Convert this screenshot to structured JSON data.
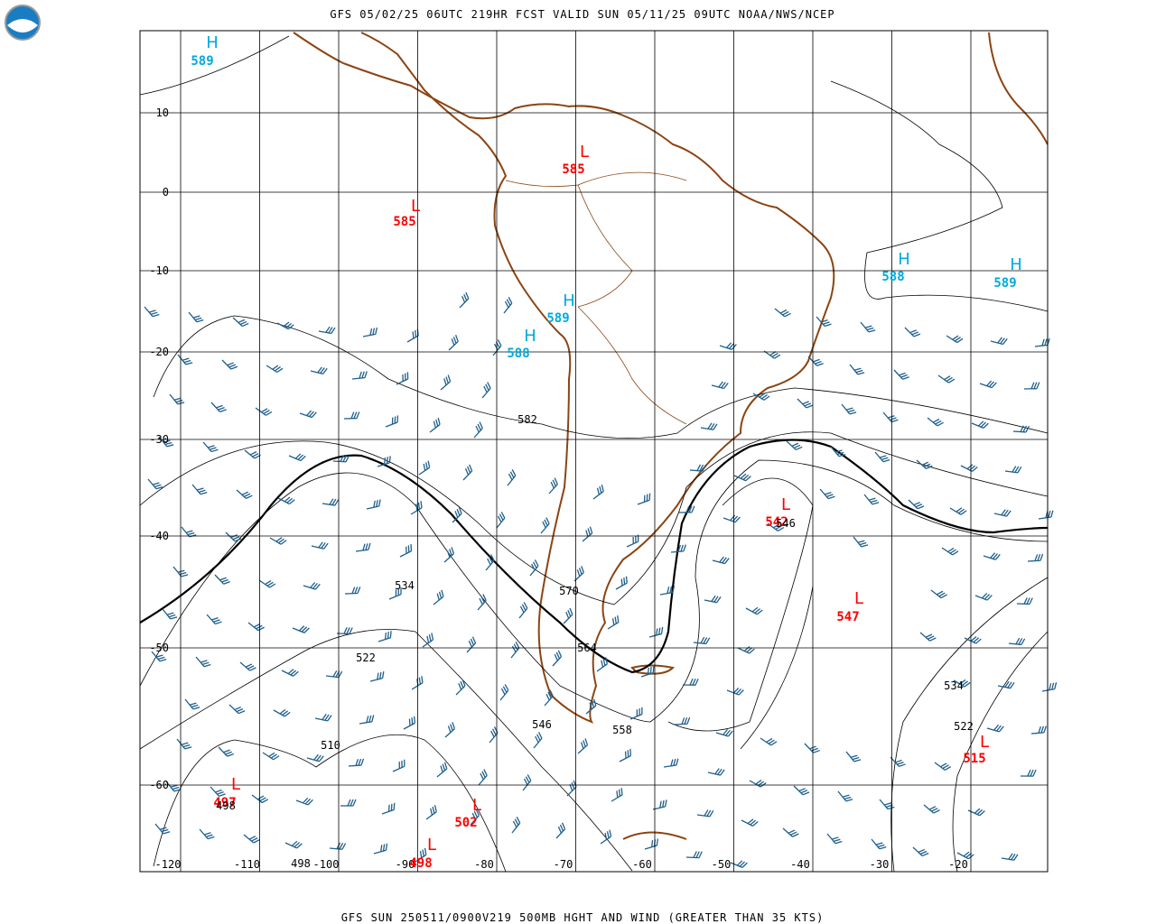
{
  "header": {
    "title": "GFS 05/02/25 06UTC 219HR FCST VALID SUN 05/11/25 09UTC NOAA/NWS/NCEP"
  },
  "footer": {
    "caption": "GFS SUN 250511/0900V219 500MB HGHT AND WIND (GREATER THAN 35 KTS)"
  },
  "map": {
    "latitudes": [
      "10",
      "0",
      "-10",
      "-20",
      "-30",
      "-40",
      "-50",
      "-60"
    ],
    "longitudes": [
      "-120",
      "-110",
      "-100",
      "-90",
      "-80",
      "-70",
      "-60",
      "-50",
      "-40",
      "-30",
      "-20"
    ],
    "highs": [
      {
        "symbol": "H",
        "value": "589"
      },
      {
        "symbol": "H",
        "value": "589"
      },
      {
        "symbol": "H",
        "value": "588"
      },
      {
        "symbol": "H",
        "value": "588"
      },
      {
        "symbol": "H",
        "value": "589"
      }
    ],
    "lows": [
      {
        "symbol": "L",
        "value": "585"
      },
      {
        "symbol": "L",
        "value": "585"
      },
      {
        "symbol": "L",
        "value": "542"
      },
      {
        "symbol": "L",
        "value": "547"
      },
      {
        "symbol": "L",
        "value": "515"
      },
      {
        "symbol": "L",
        "value": "497"
      },
      {
        "symbol": "L",
        "value": "502"
      },
      {
        "symbol": "L",
        "value": "498"
      }
    ],
    "contour_labels": [
      "582",
      "546",
      "534",
      "570",
      "522",
      "564",
      "546",
      "558",
      "510",
      "534",
      "522",
      "498",
      "498"
    ]
  }
}
